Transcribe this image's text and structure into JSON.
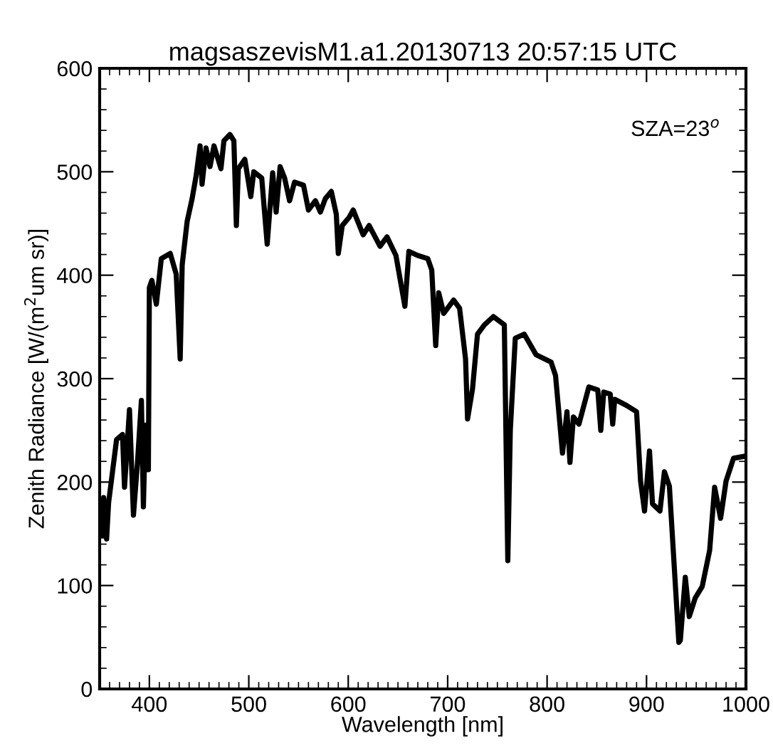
{
  "chart_data": {
    "type": "line",
    "title": "magsaszevisM1.a1.20130713 20:57:15 UTC",
    "xlabel": "Wavelength [nm]",
    "ylabel": "Zenith Radiance [W/(m$^{2}$um sr)]",
    "annotations": [
      "SZA=23$^{o}$"
    ],
    "x": [
      352,
      354,
      357,
      359,
      367,
      373,
      375,
      380,
      384,
      388,
      392,
      394,
      396,
      399,
      400,
      402.5,
      407,
      412,
      421,
      427,
      431,
      433,
      438,
      443,
      447,
      451,
      453,
      457,
      461,
      465,
      472,
      475,
      481,
      485,
      487.5,
      489.5,
      496,
      502,
      505,
      513,
      518.5,
      524,
      527.5,
      531.5,
      536,
      541,
      546,
      555,
      560,
      567,
      572,
      577,
      583,
      588,
      590,
      594,
      601,
      605,
      615,
      621,
      632,
      639,
      648,
      657,
      661,
      670,
      680,
      684,
      688,
      691,
      696,
      706,
      712,
      718,
      720,
      725,
      730,
      737,
      746,
      757,
      760.5,
      763,
      768,
      777,
      789,
      804,
      808.5,
      815.5,
      820,
      823,
      826.5,
      832,
      842,
      851,
      854,
      857,
      863.5,
      866,
      868,
      880,
      890,
      894,
      898,
      903,
      906,
      913.5,
      918,
      923,
      932.5,
      934,
      939,
      943,
      949,
      956,
      963.5,
      968.5,
      974.5,
      980,
      987.5,
      999
    ],
    "series": [
      {
        "color": "#000000",
        "values": [
          148,
          185,
          145,
          180,
          241,
          246,
          195,
          270,
          168,
          218,
          279,
          176,
          255,
          212,
          388,
          395,
          372,
          416,
          421,
          401,
          319,
          410,
          452,
          474,
          496,
          525,
          488,
          523,
          505,
          525,
          503,
          530,
          536,
          530,
          448,
          503,
          512,
          476,
          500,
          494,
          430,
          499,
          461,
          505,
          494,
          472,
          490,
          487,
          463,
          472,
          461,
          474,
          481,
          459,
          421,
          448,
          456,
          463,
          439,
          448,
          428,
          437,
          419,
          370,
          423,
          419,
          416,
          405,
          332,
          383,
          363,
          376,
          368,
          319,
          261,
          290,
          343,
          352,
          360,
          352,
          124,
          250,
          339,
          343,
          323,
          316,
          303,
          228,
          268,
          219,
          263,
          256,
          292,
          289,
          250,
          287,
          285,
          256,
          280,
          274,
          268,
          201,
          172,
          230,
          179,
          172,
          210,
          196,
          45,
          47,
          108,
          70,
          88,
          99,
          134,
          195,
          165,
          201,
          223,
          225
        ]
      }
    ],
    "xlim": [
      350,
      1000
    ],
    "xticks": [
      400,
      500,
      600,
      700,
      800,
      900,
      1000
    ],
    "ylim": [
      0,
      600
    ],
    "yticks": [
      0,
      100,
      200,
      300,
      400,
      500,
      600
    ],
    "grid": false,
    "legend": false,
    "marker": "none",
    "line_style": "solid"
  }
}
